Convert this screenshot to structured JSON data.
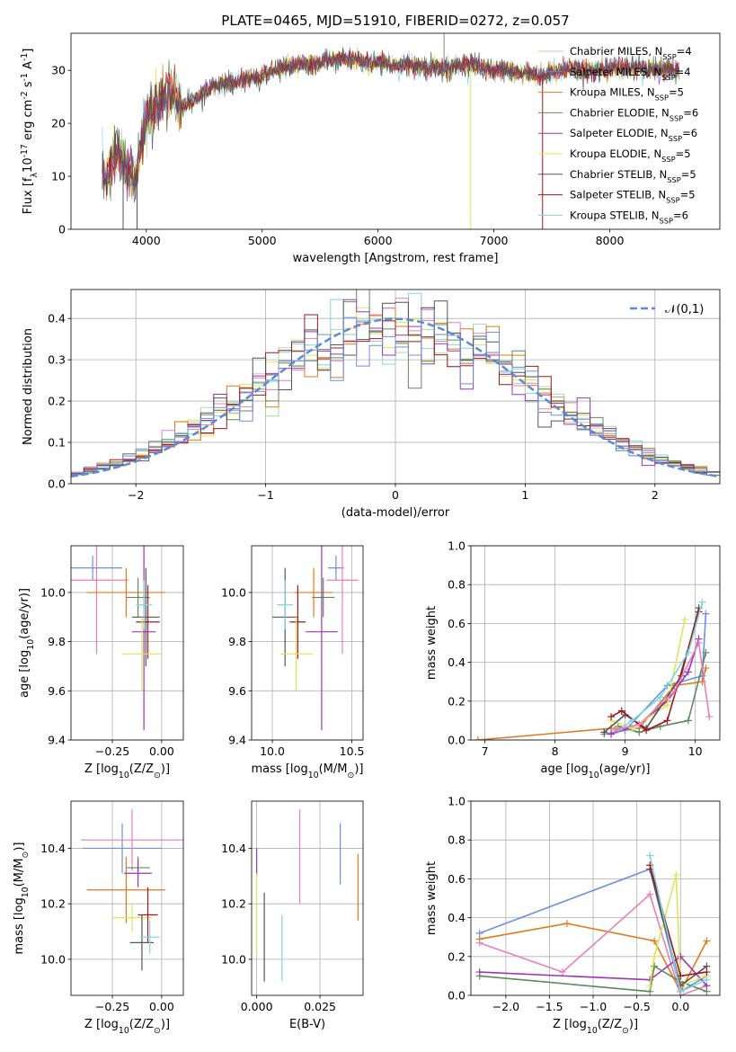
{
  "figure_title": "PLATE=0465, MJD=51910, FIBERID=0272, z=0.057",
  "series_colors": {
    "chabrier_miles": "#aad8a9",
    "salpeter_miles": "#6f8fe0",
    "kroupa_miles": "#e07a1f",
    "chabrier_elodie": "#5f8a5c",
    "salpeter_elodie": "#9e34b8",
    "kroupa_elodie": "#dbe65a",
    "chabrier_stelib": "#555555",
    "salpeter_stelib": "#a01818",
    "kroupa_stelib": "#7fd6df",
    "extra_pink": "#e87fb8",
    "normal_curve": "#5b8ad6"
  },
  "chart_data": [
    {
      "id": "spectrum",
      "type": "line",
      "xlabel": "wavelength [Angstrom, rest frame]",
      "ylabel": "Flux [f$_\\lambda$10$^{-17}$ erg cm$^{-2}$ s$^{-1}$ A$^{-1}$]",
      "xlim": [
        3350,
        8950
      ],
      "ylim": [
        0,
        37
      ],
      "xticks": [
        4000,
        5000,
        6000,
        7000,
        8000
      ],
      "yticks": [
        0,
        10,
        20,
        30
      ],
      "grid": false,
      "legend_position": "right",
      "legend": [
        {
          "label": "Chabrier MILES, N_SSP=4",
          "color": "chabrier_miles"
        },
        {
          "label": "Salpeter MILES, N_SSP=4",
          "color": "salpeter_miles"
        },
        {
          "label": "Kroupa MILES, N_SSP=5",
          "color": "kroupa_miles"
        },
        {
          "label": "Chabrier ELODIE, N_SSP=6",
          "color": "chabrier_elodie"
        },
        {
          "label": "Salpeter ELODIE, N_SSP=6",
          "color": "salpeter_elodie"
        },
        {
          "label": "Kroupa ELODIE, N_SSP=5",
          "color": "kroupa_elodie"
        },
        {
          "label": "Chabrier STELIB, N_SSP=5",
          "color": "chabrier_stelib"
        },
        {
          "label": "Salpeter STELIB, N_SSP=5",
          "color": "salpeter_stelib"
        },
        {
          "label": "Kroupa STELIB, N_SSP=6",
          "color": "kroupa_stelib"
        }
      ],
      "data_curve": {
        "x": [
          3620,
          3680,
          3750,
          3800,
          3900,
          4000,
          4100,
          4200,
          4300,
          4400,
          4500,
          4600,
          4700,
          4800,
          4900,
          5000,
          5100,
          5200,
          5300,
          5400,
          5500,
          5600,
          5700,
          5800,
          5900,
          6000,
          6100,
          6200,
          6300,
          6400,
          6500,
          6600,
          6700,
          6800,
          6900,
          7000,
          7100,
          7200,
          7300,
          7400,
          7500,
          7600,
          7700,
          7800,
          7900,
          8000,
          8100,
          8200,
          8300,
          8400,
          8500,
          8600
        ],
        "y": [
          10,
          11,
          15,
          13,
          9,
          21,
          24,
          26,
          23,
          24,
          26,
          27,
          27.5,
          28,
          28.5,
          29,
          30,
          30.5,
          31,
          31,
          31.5,
          32,
          32,
          32,
          31.5,
          31.5,
          31,
          31,
          31,
          30.5,
          30.5,
          30.5,
          31,
          31,
          30.5,
          30,
          30,
          29.5,
          29.5,
          29,
          29.5,
          30,
          30.5,
          30,
          30,
          30.5,
          30.5,
          30.5,
          30.5,
          30,
          30,
          30
        ],
        "dips": [
          {
            "x": 3800,
            "y": 0
          },
          {
            "x": 3920,
            "y": 0
          },
          {
            "x": 6800,
            "y": 0
          },
          {
            "x": 7420,
            "y": 0
          }
        ]
      }
    },
    {
      "id": "residuals",
      "type": "histogram",
      "xlabel": "(data-model)/error",
      "ylabel": "Normed distribution",
      "xlim": [
        -2.5,
        2.5
      ],
      "ylim": [
        0,
        0.47
      ],
      "xticks": [
        -2,
        -1,
        0,
        1,
        2
      ],
      "yticks": [
        0.0,
        0.1,
        0.2,
        0.3,
        0.4
      ],
      "grid": true,
      "legend_position": "top-right",
      "legend_label": "$\\mathcal{N}(0,1)$",
      "bin_width": 0.1,
      "bin_start": -2.5
    },
    {
      "id": "age_vs_Z",
      "type": "errorbar",
      "xlabel": "Z [log$_{10}$($Z/Z_\\odot$)]",
      "ylabel": "age  [log$_{10}$($age/yr$)]",
      "xlim": [
        -0.46,
        0.11
      ],
      "ylim": [
        9.4,
        10.19
      ],
      "xticks": [
        -0.25,
        0.0
      ],
      "yticks": [
        9.4,
        9.6,
        9.8,
        10.0
      ],
      "grid": true,
      "points": [
        {
          "color": "salpeter_miles",
          "x": -0.35,
          "xerr": 0.15,
          "y": 10.1,
          "yerr": 0.05
        },
        {
          "color": "extra_pink",
          "x": -0.33,
          "xerr": 0.16,
          "y": 10.05,
          "yerr": 0.3
        },
        {
          "color": "kroupa_miles",
          "x": -0.18,
          "xerr": 0.2,
          "y": 10.0,
          "yerr": 0.1
        },
        {
          "color": "chabrier_elodie",
          "x": -0.12,
          "xerr": 0.06,
          "y": 9.98,
          "yerr": 0.08
        },
        {
          "color": "chabrier_stelib",
          "x": -0.08,
          "xerr": 0.07,
          "y": 9.9,
          "yerr": 0.2
        },
        {
          "color": "salpeter_stelib",
          "x": -0.07,
          "xerr": 0.06,
          "y": 9.88,
          "yerr": 0.15
        },
        {
          "color": "salpeter_elodie",
          "x": -0.09,
          "xerr": 0.06,
          "y": 9.84,
          "yerr": 0.4
        },
        {
          "color": "kroupa_elodie",
          "x": -0.1,
          "xerr": 0.1,
          "y": 9.75,
          "yerr": 0.15
        },
        {
          "color": "kroupa_stelib",
          "x": -0.09,
          "xerr": 0.04,
          "y": 9.95,
          "yerr": 0.1
        }
      ]
    },
    {
      "id": "age_vs_mass",
      "type": "errorbar",
      "xlabel": "mass [log$_{10}$($M/M_\\odot$)]",
      "ylabel": "",
      "xlim": [
        9.87,
        10.57
      ],
      "ylim": [
        9.4,
        10.19
      ],
      "xticks": [
        10.0,
        10.5
      ],
      "yticks": [
        9.4,
        9.6,
        9.8,
        10.0
      ],
      "grid": true,
      "points": [
        {
          "color": "salpeter_miles",
          "x": 10.4,
          "xerr": 0.05,
          "y": 10.1,
          "yerr": 0.05
        },
        {
          "color": "extra_pink",
          "x": 10.44,
          "xerr": 0.1,
          "y": 10.05,
          "yerr": 0.3
        },
        {
          "color": "kroupa_miles",
          "x": 10.26,
          "xerr": 0.12,
          "y": 10.0,
          "yerr": 0.1
        },
        {
          "color": "chabrier_elodie",
          "x": 10.32,
          "xerr": 0.07,
          "y": 9.98,
          "yerr": 0.08
        },
        {
          "color": "chabrier_stelib",
          "x": 10.08,
          "xerr": 0.08,
          "y": 9.9,
          "yerr": 0.2
        },
        {
          "color": "salpeter_stelib",
          "x": 10.16,
          "xerr": 0.05,
          "y": 9.88,
          "yerr": 0.15
        },
        {
          "color": "salpeter_elodie",
          "x": 10.31,
          "xerr": 0.1,
          "y": 9.84,
          "yerr": 0.4
        },
        {
          "color": "kroupa_elodie",
          "x": 10.15,
          "xerr": 0.1,
          "y": 9.75,
          "yerr": 0.15
        },
        {
          "color": "kroupa_stelib",
          "x": 10.08,
          "xerr": 0.05,
          "y": 9.95,
          "yerr": 0.1
        }
      ]
    },
    {
      "id": "weight_vs_age",
      "type": "line",
      "xlabel": "age  [log$_{10}$($age/yr$)]",
      "ylabel": "mass weight",
      "xlim": [
        6.8,
        10.35
      ],
      "ylim": [
        0,
        1.0
      ],
      "xticks": [
        7,
        8,
        9,
        10
      ],
      "yticks": [
        0.0,
        0.2,
        0.4,
        0.6,
        0.8,
        1.0
      ],
      "grid": true,
      "series": [
        {
          "color": "salpeter_miles",
          "x": [
            8.7,
            9.0,
            9.6,
            10.1,
            10.15
          ],
          "y": [
            0.03,
            0.05,
            0.28,
            0.33,
            0.65
          ]
        },
        {
          "color": "kroupa_miles",
          "x": [
            6.9,
            8.8,
            9.2,
            9.7,
            10.1,
            10.15
          ],
          "y": [
            0.0,
            0.06,
            0.06,
            0.28,
            0.3,
            0.37
          ]
        },
        {
          "color": "chabrier_elodie",
          "x": [
            8.9,
            9.2,
            9.5,
            9.9,
            10.15
          ],
          "y": [
            0.07,
            0.04,
            0.07,
            0.1,
            0.45
          ]
        },
        {
          "color": "salpeter_elodie",
          "x": [
            8.8,
            9.2,
            9.6,
            9.9,
            10.05
          ],
          "y": [
            0.03,
            0.08,
            0.2,
            0.35,
            0.52
          ]
        },
        {
          "color": "kroupa_elodie",
          "x": [
            8.8,
            9.1,
            9.6,
            9.85
          ],
          "y": [
            0.1,
            0.06,
            0.18,
            0.62
          ]
        },
        {
          "color": "chabrier_stelib",
          "x": [
            8.7,
            9.0,
            9.3,
            9.8,
            10.05
          ],
          "y": [
            0.04,
            0.13,
            0.06,
            0.33,
            0.68
          ]
        },
        {
          "color": "salpeter_stelib",
          "x": [
            8.8,
            8.95,
            9.3,
            9.6,
            10.05
          ],
          "y": [
            0.12,
            0.15,
            0.05,
            0.1,
            0.66
          ]
        },
        {
          "color": "kroupa_stelib",
          "x": [
            8.9,
            9.1,
            9.5,
            9.9,
            10.1
          ],
          "y": [
            0.05,
            0.1,
            0.22,
            0.45,
            0.71
          ]
        },
        {
          "color": "extra_pink",
          "x": [
            8.85,
            9.2,
            9.7,
            10.05,
            10.2
          ],
          "y": [
            0.05,
            0.08,
            0.25,
            0.5,
            0.12
          ]
        }
      ]
    },
    {
      "id": "mass_vs_Z",
      "type": "errorbar",
      "xlabel": "Z [log$_{10}$($Z/Z_\\odot$)]",
      "ylabel": "mass [log$_{10}$($M/M_\\odot$)]",
      "xlim": [
        -0.46,
        0.11
      ],
      "ylim": [
        9.87,
        10.57
      ],
      "xticks": [
        -0.25,
        0.0
      ],
      "yticks": [
        10.0,
        10.2,
        10.4
      ],
      "grid": true,
      "points": [
        {
          "color": "salpeter_miles",
          "x": -0.2,
          "xerr": 0.2,
          "y": 10.4,
          "yerr": 0.09
        },
        {
          "color": "extra_pink",
          "x": -0.15,
          "xerr": 0.26,
          "y": 10.43,
          "yerr": 0.11
        },
        {
          "color": "kroupa_miles",
          "x": -0.18,
          "xerr": 0.2,
          "y": 10.25,
          "yerr": 0.12
        },
        {
          "color": "chabrier_elodie",
          "x": -0.12,
          "xerr": 0.06,
          "y": 10.33,
          "yerr": 0.04
        },
        {
          "color": "salpeter_elodie",
          "x": -0.12,
          "xerr": 0.07,
          "y": 10.31,
          "yerr": 0.05
        },
        {
          "color": "kroupa_elodie",
          "x": -0.15,
          "xerr": 0.1,
          "y": 10.15,
          "yerr": 0.05
        },
        {
          "color": "salpeter_stelib",
          "x": -0.07,
          "xerr": 0.05,
          "y": 10.16,
          "yerr": 0.1
        },
        {
          "color": "chabrier_stelib",
          "x": -0.1,
          "xerr": 0.06,
          "y": 10.06,
          "yerr": 0.1
        },
        {
          "color": "kroupa_stelib",
          "x": -0.06,
          "xerr": 0.05,
          "y": 10.08,
          "yerr": 0.06
        }
      ]
    },
    {
      "id": "mass_vs_ebv",
      "type": "errorbar",
      "xlabel": "E(B-V)",
      "ylabel": "",
      "xlim": [
        -0.002,
        0.042
      ],
      "ylim": [
        9.87,
        10.57
      ],
      "xticks": [
        0.0,
        0.025
      ],
      "yticks": [
        10.0,
        10.2,
        10.4
      ],
      "grid": true,
      "points": [
        {
          "color": "salpeter_elodie",
          "x": 0.0,
          "y": 10.35,
          "yerr": 0.05
        },
        {
          "color": "kroupa_elodie",
          "x": 0.0,
          "y": 10.16,
          "yerr": 0.15
        },
        {
          "color": "chabrier_stelib",
          "x": 0.003,
          "y": 10.08,
          "yerr": 0.16
        },
        {
          "color": "kroupa_stelib",
          "x": 0.01,
          "y": 10.04,
          "yerr": 0.12
        },
        {
          "color": "extra_pink",
          "x": 0.017,
          "y": 10.37,
          "yerr": 0.17
        },
        {
          "color": "salpeter_miles",
          "x": 0.033,
          "y": 10.38,
          "yerr": 0.11
        },
        {
          "color": "kroupa_miles",
          "x": 0.04,
          "y": 10.26,
          "yerr": 0.12
        }
      ]
    },
    {
      "id": "weight_vs_Z",
      "type": "line",
      "xlabel": "Z [log$_{10}$($Z/Z_\\odot$)]",
      "ylabel": "mass weight",
      "xlim": [
        -2.4,
        0.45
      ],
      "ylim": [
        0,
        1.0
      ],
      "xticks": [
        -2.0,
        -1.5,
        -1.0,
        -0.5,
        0.0
      ],
      "yticks": [
        0.0,
        0.2,
        0.4,
        0.6,
        0.8,
        1.0
      ],
      "grid": true,
      "series": [
        {
          "color": "salpeter_miles",
          "x": [
            -2.3,
            -0.35,
            0.0,
            0.3
          ],
          "y": [
            0.32,
            0.65,
            0.02,
            0.1
          ]
        },
        {
          "color": "kroupa_miles",
          "x": [
            -2.3,
            -1.3,
            -0.3,
            0.0,
            0.3
          ],
          "y": [
            0.29,
            0.37,
            0.28,
            0.02,
            0.28
          ]
        },
        {
          "color": "extra_pink",
          "x": [
            -2.3,
            -1.35,
            -0.35,
            0.0,
            0.3
          ],
          "y": [
            0.27,
            0.12,
            0.52,
            0.0,
            0.05
          ]
        },
        {
          "color": "salpeter_elodie",
          "x": [
            -2.3,
            -0.35,
            0.0,
            0.3
          ],
          "y": [
            0.12,
            0.08,
            0.2,
            0.05
          ]
        },
        {
          "color": "chabrier_elodie",
          "x": [
            -2.3,
            -0.35,
            -0.3,
            0.0,
            0.3
          ],
          "y": [
            0.1,
            0.02,
            0.15,
            0.07,
            0.02
          ]
        },
        {
          "color": "kroupa_elodie",
          "x": [
            -0.35,
            -0.3,
            -0.05,
            0.0,
            0.3
          ],
          "y": [
            0.05,
            0.2,
            0.62,
            0.05,
            0.1
          ]
        },
        {
          "color": "chabrier_stelib",
          "x": [
            -0.35,
            0.0,
            0.3
          ],
          "y": [
            0.65,
            0.05,
            0.15
          ]
        },
        {
          "color": "salpeter_stelib",
          "x": [
            -0.35,
            0.0,
            0.3
          ],
          "y": [
            0.67,
            0.1,
            0.12
          ]
        },
        {
          "color": "kroupa_stelib",
          "x": [
            -0.35,
            0.0,
            0.3
          ],
          "y": [
            0.72,
            0.02,
            0.08
          ]
        }
      ]
    }
  ]
}
